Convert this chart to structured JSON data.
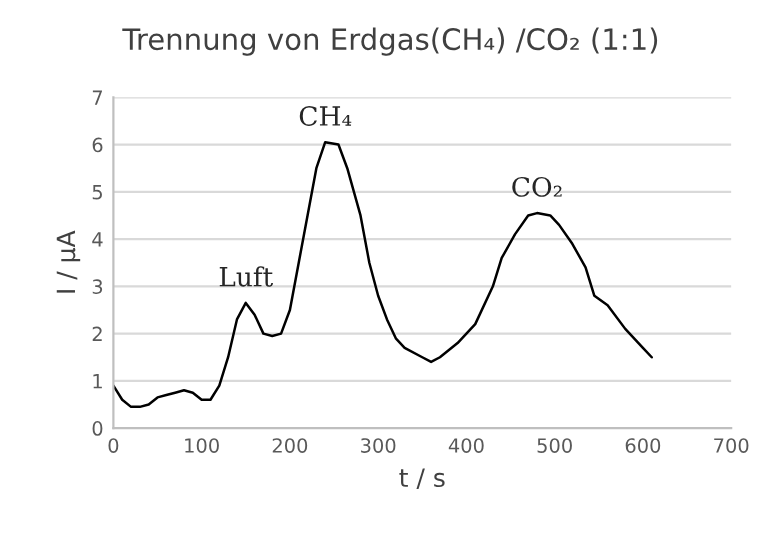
{
  "chart_data": {
    "type": "line",
    "title": "Trennung von Erdgas(CH₄) /CO₂ (1:1)",
    "xlabel": "t / s",
    "ylabel": "I / µA",
    "xlim": [
      0,
      700
    ],
    "xticks": [
      0,
      100,
      200,
      300,
      400,
      500,
      600,
      700
    ],
    "ylim": [
      0,
      7
    ],
    "yticks": [
      0,
      1,
      2,
      3,
      4,
      5,
      6,
      7
    ],
    "grid": "y",
    "marker": "none",
    "line_style": "solid",
    "annotations": [
      {
        "text": "Luft",
        "x": 150,
        "y": 2.65
      },
      {
        "text": "CH₄",
        "x": 240,
        "y": 6.05
      },
      {
        "text": "CO₂",
        "x": 480,
        "y": 4.55
      }
    ],
    "series": [
      {
        "color": "#000000",
        "x": [
          0,
          10,
          20,
          30,
          40,
          50,
          60,
          70,
          80,
          90,
          100,
          110,
          120,
          130,
          140,
          150,
          160,
          170,
          180,
          190,
          200,
          210,
          220,
          230,
          240,
          255,
          265,
          280,
          290,
          300,
          310,
          320,
          330,
          350,
          360,
          370,
          390,
          410,
          430,
          440,
          455,
          470,
          480,
          495,
          505,
          520,
          535,
          545,
          560,
          580,
          600,
          610
        ],
        "values": [
          0.9,
          0.6,
          0.45,
          0.45,
          0.5,
          0.65,
          0.7,
          0.75,
          0.8,
          0.75,
          0.6,
          0.6,
          0.9,
          1.5,
          2.3,
          2.65,
          2.4,
          2.0,
          1.95,
          2.0,
          2.5,
          3.5,
          4.5,
          5.5,
          6.05,
          6.0,
          5.5,
          4.5,
          3.5,
          2.8,
          2.3,
          1.9,
          1.7,
          1.5,
          1.4,
          1.5,
          1.8,
          2.2,
          3.0,
          3.6,
          4.1,
          4.5,
          4.55,
          4.5,
          4.3,
          3.9,
          3.4,
          2.8,
          2.6,
          2.1,
          1.7,
          1.5
        ]
      }
    ]
  }
}
